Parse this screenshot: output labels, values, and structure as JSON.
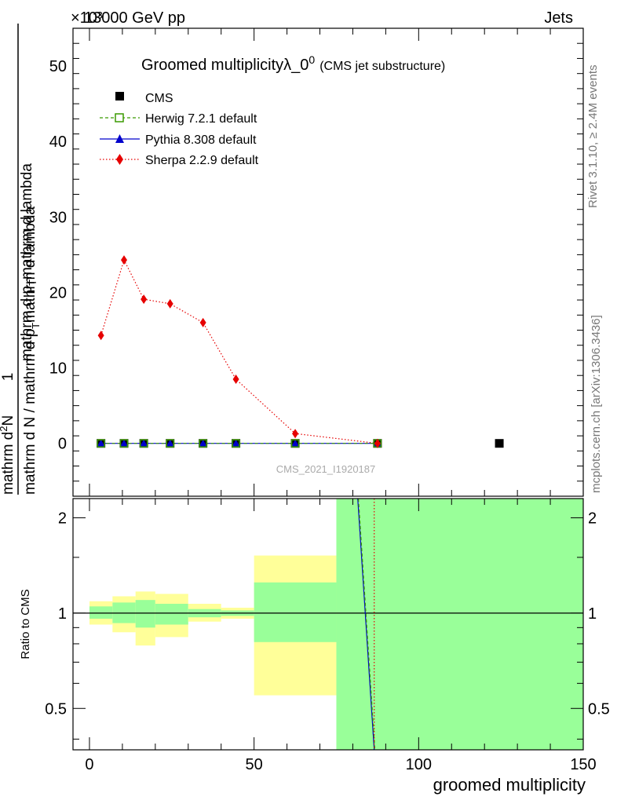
{
  "header": {
    "left": "13000 GeV pp",
    "right": "Jets",
    "exponent": "×10³"
  },
  "side_labels": {
    "rivet": "Rivet 3.1.10, ≥ 2.4M events",
    "mcplots": "mcplots.cern.ch [arXiv:1306.3436]"
  },
  "watermark": "CMS_2021_I1920187",
  "chart_data": [
    {
      "type": "scatter",
      "title": "Groomed multiplicityλ_0",
      "title_sup": "0",
      "subtitle": "(CMS jet substructure)",
      "ylabel_top": "1",
      "ylabel_bottom": "mathrm d N / mathrm d p",
      "ylabel_bottom_sub": "T",
      "ylabel_bottom_rest": "mathrm d lambda",
      "ylabel_numerator": "mathrm d",
      "ylabel_numerator_sup": "2",
      "ylabel_numerator_rest": "N",
      "ylabel_middle": "mathrm d p",
      "ylabel_middle_sub": "T",
      "ylabel_middle_rest": "mathrm d lambda",
      "xlim": [
        -5,
        150
      ],
      "ylim": [
        -7,
        55
      ],
      "yticks": [
        0,
        10,
        20,
        30,
        40,
        50
      ],
      "ytick_labels": [
        "0",
        "10",
        "20",
        "30",
        "40",
        "50"
      ],
      "legend_position": "top-left",
      "series": [
        {
          "name": "CMS",
          "color": "#000000",
          "marker": "square",
          "x": [
            3.5,
            10.5,
            16.5,
            24.5,
            34.5,
            44.5,
            62.5,
            87.5,
            124.5
          ],
          "y": [
            0,
            0,
            0,
            0,
            0,
            0,
            0,
            0,
            0
          ]
        },
        {
          "name": "Herwig 7.2.1 default",
          "color": "#3a9a00",
          "marker": "open-square",
          "line": "dashed",
          "x": [
            3.5,
            10.5,
            16.5,
            24.5,
            34.5,
            44.5,
            62.5,
            87.5
          ],
          "y": [
            0,
            0,
            0,
            0,
            0,
            0,
            0,
            0
          ]
        },
        {
          "name": "Pythia 8.308 default",
          "color": "#0000cc",
          "marker": "triangle",
          "line": "solid",
          "x": [
            3.5,
            10.5,
            16.5,
            24.5,
            34.5,
            44.5,
            62.5,
            87.5
          ],
          "y": [
            0,
            0,
            0,
            0,
            0,
            0,
            0,
            0
          ]
        },
        {
          "name": "Sherpa 2.2.9 default",
          "color": "#e60000",
          "marker": "diamond",
          "line": "dotted",
          "x": [
            3.5,
            10.5,
            16.5,
            24.5,
            34.5,
            44.5,
            62.5,
            87.5
          ],
          "y": [
            14.3,
            24.3,
            19.1,
            18.5,
            16.0,
            8.5,
            1.3,
            0.0
          ]
        }
      ]
    },
    {
      "type": "line",
      "ylabel": "Ratio to CMS",
      "xlabel": "groomed multiplicity",
      "xlim": [
        -5,
        150
      ],
      "ylim": [
        0.37,
        2.3
      ],
      "y_scale": "log",
      "xticks": [
        0,
        50,
        100,
        150
      ],
      "xtick_labels": [
        "0",
        "50",
        "100",
        "150"
      ],
      "yticks": [
        0.5,
        1,
        2
      ],
      "ytick_labels": [
        "0.5",
        "1",
        "2"
      ],
      "bands": [
        {
          "x0": 0,
          "x1": 7,
          "y_lo": 0.92,
          "y_hi": 1.09,
          "inner_lo": 0.96,
          "inner_hi": 1.05
        },
        {
          "x0": 7,
          "x1": 14,
          "y_lo": 0.87,
          "y_hi": 1.13,
          "inner_lo": 0.93,
          "inner_hi": 1.08
        },
        {
          "x0": 14,
          "x1": 20,
          "y_lo": 0.79,
          "y_hi": 1.17,
          "inner_lo": 0.9,
          "inner_hi": 1.1
        },
        {
          "x0": 20,
          "x1": 30,
          "y_lo": 0.84,
          "y_hi": 1.15,
          "inner_lo": 0.92,
          "inner_hi": 1.07
        },
        {
          "x0": 30,
          "x1": 40,
          "y_lo": 0.94,
          "y_hi": 1.07,
          "inner_lo": 0.97,
          "inner_hi": 1.03
        },
        {
          "x0": 40,
          "x1": 50,
          "y_lo": 0.96,
          "y_hi": 1.04,
          "inner_lo": 0.98,
          "inner_hi": 1.02
        },
        {
          "x0": 50,
          "x1": 75,
          "y_lo": 0.55,
          "y_hi": 1.52,
          "inner_lo": 0.81,
          "inner_hi": 1.25
        },
        {
          "x0": 75,
          "x1": 150,
          "y_lo": 0.37,
          "y_hi": 2.3,
          "inner_lo": 0.37,
          "inner_hi": 2.3
        }
      ],
      "series": [
        {
          "name": "Pythia 8.308 default",
          "color": "#0000cc",
          "line": "solid",
          "x": [
            81.5,
            86.5
          ],
          "y": [
            2.3,
            0.37
          ]
        },
        {
          "name": "Herwig 7.2.1 default",
          "color": "#3a9a00",
          "line": "dashed",
          "x": [
            81.7,
            86.7
          ],
          "y": [
            2.3,
            0.37
          ]
        },
        {
          "name": "Sherpa 2.2.9 default",
          "color": "#e60000",
          "line": "dotted",
          "x": [
            86.5,
            86.5
          ],
          "y": [
            2.3,
            0.37
          ]
        }
      ]
    }
  ],
  "colors": {
    "band_outer": "#ffff99",
    "band_inner": "#99ff99"
  }
}
